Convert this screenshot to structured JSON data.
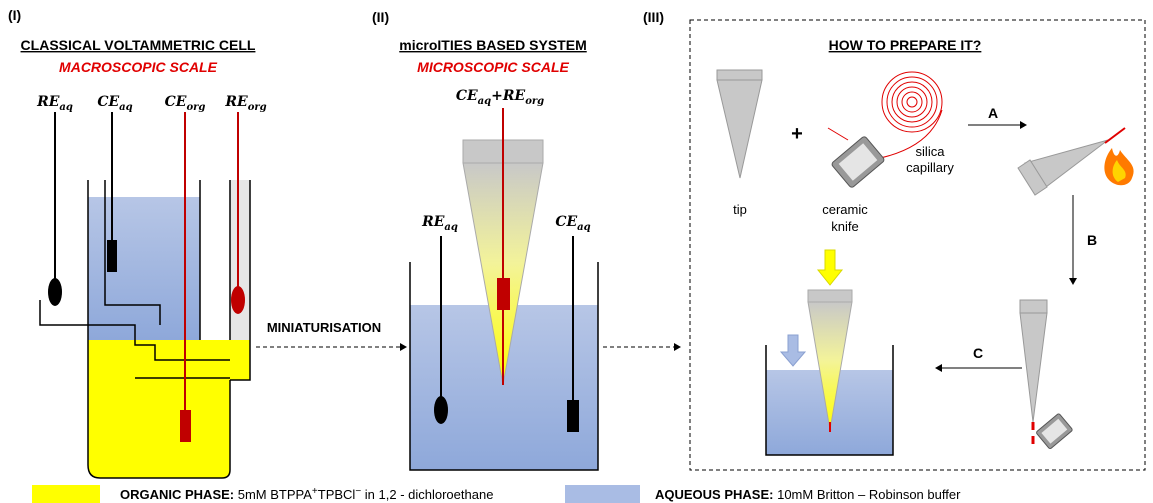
{
  "panel_1": {
    "label": "(I)",
    "title": "CLASSICAL VOLTAMMETRIC CELL",
    "subtitle": "MACROSCOPIC SCALE",
    "electrodes": [
      {
        "base": "RE",
        "sub": "aq"
      },
      {
        "base": "CE",
        "sub": "aq"
      },
      {
        "base": "CE",
        "sub": "org"
      },
      {
        "base": "RE",
        "sub": "org"
      }
    ]
  },
  "transition": "MINIATURISATION",
  "panel_2": {
    "label": "(II)",
    "title": "microITIES BASED SYSTEM",
    "subtitle": "MICROSCOPIC SCALE",
    "tip_electrodes": [
      {
        "base": "CE",
        "sub": "aq"
      },
      {
        "base": "RE",
        "sub": "org"
      }
    ],
    "joiner": "+",
    "electrodes": [
      {
        "base": "RE",
        "sub": "aq"
      },
      {
        "base": "CE",
        "sub": "aq"
      }
    ]
  },
  "panel_3": {
    "label": "(III)",
    "title": "HOW TO PREPARE IT?",
    "tip": "tip",
    "plus": "+",
    "knife": [
      "ceramic",
      "knife"
    ],
    "capillary": [
      "silica",
      "capillary"
    ],
    "steps": [
      "A",
      "B",
      "C"
    ]
  },
  "legend": [
    {
      "name": "ORGANIC PHASE:",
      "desc": [
        "5mM BTPPA",
        "+",
        "TPBCl",
        "−",
        " in 1,2 - dichloroethane"
      ]
    },
    {
      "name": "AQUEOUS PHASE:",
      "desc": [
        "10mM Britton – Robinson buffer"
      ]
    }
  ]
}
